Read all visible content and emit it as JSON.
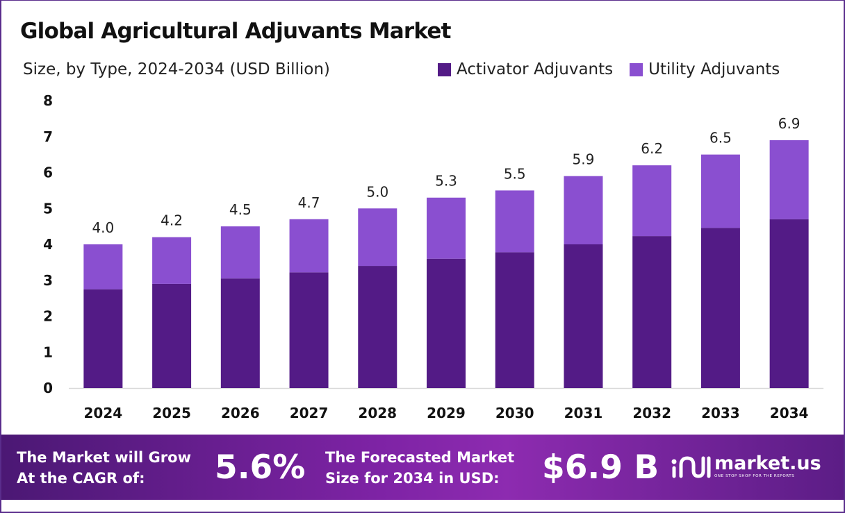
{
  "header": {
    "title": "Global Agricultural Adjuvants Market",
    "subtitle": "Size, by Type, 2024-2034 (USD Billion)"
  },
  "colors": {
    "activator": "#531b86",
    "utility": "#8a4fd0",
    "axis_text": "#111111",
    "banner_start": "#4b1874",
    "banner_end": "#8d2bb0"
  },
  "chart_data": {
    "type": "bar",
    "stacked": true,
    "categories": [
      "2024",
      "2025",
      "2026",
      "2027",
      "2028",
      "2029",
      "2030",
      "2031",
      "2032",
      "2033",
      "2034"
    ],
    "series": [
      {
        "name": "Activator Adjuvants",
        "values": [
          2.75,
          2.9,
          3.05,
          3.22,
          3.4,
          3.6,
          3.78,
          4.0,
          4.23,
          4.46,
          4.7
        ]
      },
      {
        "name": "Utility Adjuvants",
        "values": [
          1.25,
          1.3,
          1.45,
          1.48,
          1.6,
          1.7,
          1.72,
          1.9,
          1.97,
          2.04,
          2.2
        ]
      }
    ],
    "totals": [
      4.0,
      4.2,
      4.5,
      4.7,
      5.0,
      5.3,
      5.5,
      5.9,
      6.2,
      6.5,
      6.9
    ],
    "total_labels": [
      "4.0",
      "4.2",
      "4.5",
      "4.7",
      "5.0",
      "5.3",
      "5.5",
      "5.9",
      "6.2",
      "6.5",
      "6.9"
    ],
    "ylim": [
      0,
      8
    ],
    "yticks": [
      0,
      1,
      2,
      3,
      4,
      5,
      6,
      7,
      8
    ],
    "legend_position": "top-right",
    "grid": false
  },
  "banner": {
    "cagr_line1": "The Market will Grow",
    "cagr_line2": "At the CAGR of:",
    "cagr_value": "5.6%",
    "forecast_line1": "The Forecasted Market",
    "forecast_line2": "Size for 2034 in USD:",
    "forecast_value": "$6.9 B",
    "logo_name": "market.us",
    "logo_tagline": "ONE STOP SHOP FOR THE REPORTS"
  }
}
